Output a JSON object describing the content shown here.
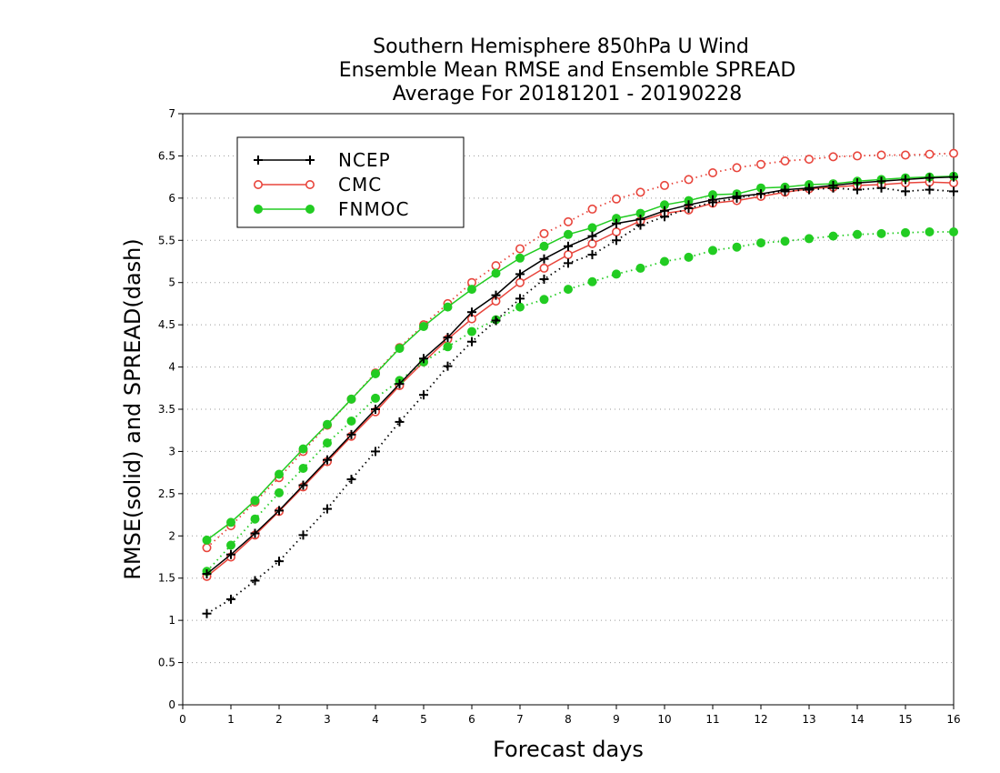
{
  "chart_data": {
    "type": "line",
    "title": [
      "Southern Hemisphere 850hPa U Wind",
      "Ensemble Mean RMSE and Ensemble SPREAD",
      "Average For 20181201 - 20190228"
    ],
    "xlabel": "Forecast days",
    "ylabel": "RMSE(solid) and SPREAD(dash)",
    "xlim": [
      0,
      16
    ],
    "ylim": [
      0,
      7
    ],
    "xticks": [
      0,
      1,
      2,
      3,
      4,
      5,
      6,
      7,
      8,
      9,
      10,
      11,
      12,
      13,
      14,
      15,
      16
    ],
    "yticks": [
      0,
      0.5,
      1,
      1.5,
      2,
      2.5,
      3,
      3.5,
      4,
      4.5,
      5,
      5.5,
      6,
      6.5,
      7
    ],
    "ytick_labels": [
      "0",
      "0.5",
      "1",
      "1.5",
      "2",
      "2.5",
      "3",
      "3.5",
      "4",
      "4.5",
      "5",
      "5.5",
      "6",
      "6.5",
      "7"
    ],
    "grid": "horizontal dotted",
    "legend_position": "top-left",
    "x": [
      0.5,
      1,
      1.5,
      2,
      2.5,
      3,
      3.5,
      4,
      4.5,
      5,
      5.5,
      6,
      6.5,
      7,
      7.5,
      8,
      8.5,
      9,
      9.5,
      10,
      10.5,
      11,
      11.5,
      12,
      12.5,
      13,
      13.5,
      14,
      14.5,
      15,
      15.5,
      16
    ],
    "series": [
      {
        "name": "NCEP",
        "color": "#000000",
        "marker": "plus",
        "rmse": [
          1.55,
          1.78,
          2.03,
          2.3,
          2.6,
          2.9,
          3.2,
          3.5,
          3.8,
          4.1,
          4.35,
          4.65,
          4.85,
          5.1,
          5.28,
          5.43,
          5.55,
          5.7,
          5.75,
          5.85,
          5.92,
          5.98,
          6.02,
          6.05,
          6.1,
          6.12,
          6.15,
          6.18,
          6.2,
          6.22,
          6.24,
          6.25
        ],
        "spread": [
          1.08,
          1.25,
          1.47,
          1.7,
          2.01,
          2.32,
          2.67,
          3.0,
          3.35,
          3.67,
          4.01,
          4.3,
          4.55,
          4.81,
          5.04,
          5.23,
          5.33,
          5.5,
          5.68,
          5.78,
          5.88,
          5.95,
          6.0,
          6.05,
          6.08,
          6.1,
          6.12,
          6.1,
          6.12,
          6.08,
          6.1,
          6.08
        ]
      },
      {
        "name": "CMC",
        "color": "#e8453c",
        "marker": "open-circle",
        "rmse": [
          1.52,
          1.75,
          2.01,
          2.29,
          2.58,
          2.88,
          3.18,
          3.47,
          3.78,
          4.06,
          4.33,
          4.57,
          4.78,
          5.0,
          5.17,
          5.33,
          5.46,
          5.6,
          5.73,
          5.82,
          5.86,
          5.94,
          5.97,
          6.02,
          6.07,
          6.11,
          6.13,
          6.15,
          6.16,
          6.18,
          6.19,
          6.18
        ],
        "spread": [
          1.86,
          2.12,
          2.4,
          2.69,
          3.0,
          3.31,
          3.62,
          3.93,
          4.23,
          4.5,
          4.75,
          5.0,
          5.2,
          5.4,
          5.58,
          5.72,
          5.87,
          5.99,
          6.07,
          6.15,
          6.22,
          6.3,
          6.36,
          6.4,
          6.44,
          6.46,
          6.49,
          6.5,
          6.51,
          6.51,
          6.52,
          6.53
        ]
      },
      {
        "name": "FNMOC",
        "color": "#22cc22",
        "marker": "filled-circle",
        "rmse": [
          1.95,
          2.16,
          2.42,
          2.73,
          3.03,
          3.32,
          3.62,
          3.92,
          4.22,
          4.48,
          4.71,
          4.92,
          5.11,
          5.29,
          5.43,
          5.57,
          5.65,
          5.76,
          5.82,
          5.92,
          5.97,
          6.04,
          6.05,
          6.12,
          6.13,
          6.16,
          6.17,
          6.2,
          6.22,
          6.24,
          6.25,
          6.26
        ],
        "spread": [
          1.58,
          1.89,
          2.2,
          2.51,
          2.8,
          3.1,
          3.36,
          3.63,
          3.84,
          4.06,
          4.24,
          4.42,
          4.56,
          4.71,
          4.8,
          4.92,
          5.01,
          5.1,
          5.17,
          5.25,
          5.3,
          5.38,
          5.42,
          5.47,
          5.49,
          5.52,
          5.55,
          5.57,
          5.58,
          5.59,
          5.6,
          5.6
        ]
      }
    ]
  }
}
